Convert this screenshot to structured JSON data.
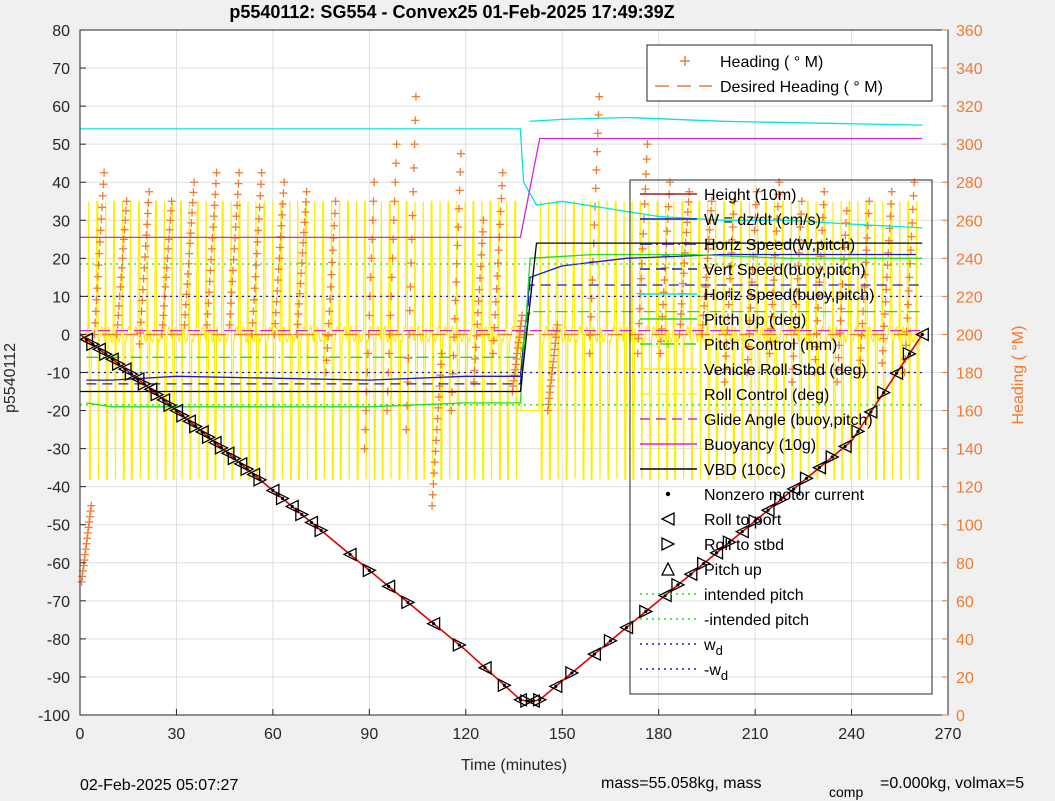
{
  "chart_data": {
    "type": "line",
    "title": "p5540112: SG554 - Convex25 01-Feb-2025 17:49:39Z",
    "xlabel": "Time (minutes)",
    "ylabel": "p5540112",
    "ylabel_right": "Heading ( °M)",
    "xlim": [
      0,
      270
    ],
    "ylim": [
      -100,
      80
    ],
    "ylim_right": [
      0,
      360
    ],
    "xticks": [
      "0",
      "30",
      "60",
      "90",
      "120",
      "150",
      "180",
      "210",
      "240",
      "270"
    ],
    "yticks": [
      "80",
      "70",
      "60",
      "50",
      "40",
      "30",
      "20",
      "10",
      "0",
      "-10",
      "-20",
      "-30",
      "-40",
      "-50",
      "-60",
      "-70",
      "-80",
      "-90",
      "-100"
    ],
    "yticks_right": [
      "360",
      "340",
      "320",
      "300",
      "280",
      "260",
      "240",
      "220",
      "200",
      "180",
      "160",
      "140",
      "120",
      "100",
      "80",
      "60",
      "40",
      "20",
      "0"
    ],
    "grid": true,
    "footer_left": "02-Feb-2025 05:07:27",
    "footer_right_a": "mass=55.058kg, mass",
    "footer_right_sub": "comp",
    "footer_right_b": "=0.000kg, volmax=5",
    "legend_top": [
      {
        "label": "Heading (  ° M)",
        "color": "#f47a30",
        "style": "plus"
      },
      {
        "label": "Desired Heading (   ° M)",
        "color": "#f47a30",
        "style": "dash"
      }
    ],
    "legend_main": [
      {
        "label": "Height (10m)",
        "color": "#a02020",
        "style": "line"
      },
      {
        "label": "W = dz/dt (cm/s)",
        "color": "#1a1acc",
        "style": "line"
      },
      {
        "label": "Horiz Speed(W,pitch)",
        "color": "#1a1acc",
        "style": "dashdot"
      },
      {
        "label": "Vert Speed(buoy,pitch)",
        "color": "#1a1acc",
        "style": "dash"
      },
      {
        "label": "Horiz Speed(buoy,pitch)",
        "color": "#00e5e5",
        "style": "line"
      },
      {
        "label": "Pitch Up (deg)",
        "color": "#22dd22",
        "style": "line"
      },
      {
        "label": "Pitch Control (mm)",
        "color": "#22dd22",
        "style": "dashdotplus"
      },
      {
        "label": "Vehicle Roll Stbd (deg)",
        "color": "#ffee00",
        "style": "line"
      },
      {
        "label": "Roll Control (deg)",
        "color": "#ffee00",
        "style": "dash"
      },
      {
        "label": "Glide Angle (buoy,pitch)",
        "color": "#e020e0",
        "style": "dash"
      },
      {
        "label": "Buoyancy (10g)",
        "color": "#e020e0",
        "style": "line"
      },
      {
        "label": "VBD (10cc)",
        "color": "#000000",
        "style": "line"
      },
      {
        "label": "Nonzero motor current",
        "color": "#000000",
        "style": "dot"
      },
      {
        "label": "Roll to port",
        "color": "#000000",
        "style": "tri-left"
      },
      {
        "label": "Roll to stbd",
        "color": "#000000",
        "style": "tri-right"
      },
      {
        "label": "Pitch up",
        "color": "#000000",
        "style": "tri-up"
      },
      {
        "label": "intended pitch",
        "color": "#22dd22",
        "style": "dot-line"
      },
      {
        "label": "-intended pitch",
        "color": "#22dd22",
        "style": "dot-line"
      },
      {
        "label": "w",
        "sub": "d",
        "color": "#1a1acc",
        "style": "dot-line"
      },
      {
        "label": "-w",
        "sub": "d",
        "color": "#1a1acc",
        "style": "dot-line"
      }
    ],
    "series": [
      {
        "name": "Height (10m)",
        "color": "#e00000",
        "x": [
          0,
          20,
          40,
          60,
          80,
          100,
          120,
          137,
          140,
          143,
          160,
          180,
          200,
          220,
          240,
          262
        ],
        "y": [
          0,
          -13,
          -27,
          -41,
          -55,
          -69,
          -83,
          -96,
          -96.5,
          -96,
          -84,
          -70,
          -56,
          -42,
          -28,
          0
        ]
      },
      {
        "name": "W = dz/dt (cm/s)",
        "color": "#1a1acc",
        "x": [
          2,
          10,
          30,
          60,
          90,
          120,
          137,
          140,
          150,
          170,
          200,
          230,
          260
        ],
        "y": [
          -12,
          -12,
          -11,
          -11.5,
          -12,
          -11,
          -11,
          15,
          18,
          20,
          21,
          21,
          21
        ]
      },
      {
        "name": "Vert Speed(buoy,pitch)",
        "color": "#1a1acc",
        "x": [
          2,
          137,
          140,
          262
        ],
        "y": [
          -13,
          -13,
          13,
          13
        ]
      },
      {
        "name": "Horiz Speed(buoy,pitch)",
        "color": "#00e5e5",
        "x": [
          0,
          137,
          138,
          142,
          150,
          165,
          180,
          200,
          220,
          240,
          262
        ],
        "y": [
          54,
          54,
          40,
          34,
          35,
          33,
          31,
          30,
          30,
          29,
          28
        ]
      },
      {
        "name": "Horiz Speed(W,pitch)",
        "color": "#00e5e5",
        "x": [
          140,
          150,
          170,
          200,
          230,
          262
        ],
        "y": [
          56,
          56.5,
          57,
          56,
          55.5,
          55
        ]
      },
      {
        "name": "Pitch Up (deg)",
        "color": "#22dd22",
        "x": [
          2,
          10,
          30,
          60,
          90,
          120,
          137,
          140,
          160,
          190,
          220,
          262
        ],
        "y": [
          -18,
          -19,
          -19,
          -19,
          -19,
          -18,
          -18,
          20,
          21,
          21,
          20,
          20
        ]
      },
      {
        "name": "Pitch Control (mm)",
        "color": "#22dd22",
        "x": [
          2,
          137,
          140,
          262
        ],
        "y": [
          -6,
          -6,
          6,
          6
        ]
      },
      {
        "name": "Buoyancy (10g)",
        "color": "#e020e0",
        "x": [
          0,
          137,
          143,
          262
        ],
        "y": [
          25.5,
          25.5,
          51.5,
          51.5
        ]
      },
      {
        "name": "Glide Angle (buoy,pitch)",
        "color": "#e020e0",
        "x": [
          0,
          262
        ],
        "y": [
          1,
          1
        ]
      },
      {
        "name": "VBD (10cc)",
        "color": "#000000",
        "x": [
          0,
          137,
          142,
          262
        ],
        "y": [
          -15,
          -15,
          24,
          24
        ]
      },
      {
        "name": "intended pitch",
        "color": "#22dd22",
        "x": [
          0,
          262
        ],
        "y": [
          18.5,
          18.5
        ]
      },
      {
        "name": "-intended pitch",
        "color": "#22dd22",
        "x": [
          0,
          262
        ],
        "y": [
          -18.5,
          -18.5
        ]
      },
      {
        "name": "w_d",
        "color": "#1a1acc",
        "x": [
          0,
          262
        ],
        "y": [
          10,
          10
        ]
      },
      {
        "name": "-w_d",
        "color": "#1a1acc",
        "x": [
          0,
          262
        ],
        "y": [
          -10,
          -10
        ]
      }
    ],
    "roll_events": {
      "x": [
        2,
        4,
        6,
        8,
        10,
        12,
        14,
        16,
        18,
        20,
        22,
        24,
        26,
        28,
        30,
        32,
        34,
        36,
        38,
        40,
        42,
        44,
        46,
        48,
        50,
        52,
        54,
        56,
        60,
        63,
        66,
        69,
        72,
        75,
        84,
        90,
        96,
        102,
        110,
        118,
        126,
        132,
        137,
        139,
        141,
        143,
        148,
        153,
        160,
        165,
        170,
        176,
        182,
        186,
        190,
        194,
        198,
        202,
        206,
        210,
        214,
        218,
        222,
        226,
        230,
        234,
        238,
        242,
        246,
        250,
        254,
        258,
        262
      ]
    },
    "heading_bursts": [
      {
        "x": 2,
        "ylo": 70,
        "yhi": 110
      },
      {
        "x": 6,
        "ylo": 200,
        "yhi": 285
      },
      {
        "x": 13,
        "ylo": 200,
        "yhi": 270
      },
      {
        "x": 20,
        "ylo": 195,
        "yhi": 275
      },
      {
        "x": 27,
        "ylo": 200,
        "yhi": 270
      },
      {
        "x": 34,
        "ylo": 205,
        "yhi": 280
      },
      {
        "x": 41,
        "ylo": 205,
        "yhi": 285
      },
      {
        "x": 48,
        "ylo": 205,
        "yhi": 285
      },
      {
        "x": 55,
        "ylo": 200,
        "yhi": 285
      },
      {
        "x": 62,
        "ylo": 200,
        "yhi": 280
      },
      {
        "x": 69,
        "ylo": 200,
        "yhi": 275
      },
      {
        "x": 78,
        "ylo": 180,
        "yhi": 270
      },
      {
        "x": 90,
        "ylo": 140,
        "yhi": 280
      },
      {
        "x": 97,
        "ylo": 160,
        "yhi": 300
      },
      {
        "x": 103,
        "ylo": 150,
        "yhi": 325
      },
      {
        "x": 111,
        "ylo": 110,
        "yhi": 190
      },
      {
        "x": 117,
        "ylo": 160,
        "yhi": 295
      },
      {
        "x": 124,
        "ylo": 175,
        "yhi": 260
      },
      {
        "x": 130,
        "ylo": 190,
        "yhi": 285
      },
      {
        "x": 136,
        "ylo": 170,
        "yhi": 210
      },
      {
        "x": 147,
        "ylo": 160,
        "yhi": 205
      },
      {
        "x": 160,
        "ylo": 190,
        "yhi": 325
      },
      {
        "x": 175,
        "ylo": 190,
        "yhi": 300
      },
      {
        "x": 182,
        "ylo": 190,
        "yhi": 280
      },
      {
        "x": 188,
        "ylo": 200,
        "yhi": 275
      },
      {
        "x": 195,
        "ylo": 200,
        "yhi": 270
      },
      {
        "x": 202,
        "ylo": 175,
        "yhi": 270
      },
      {
        "x": 209,
        "ylo": 180,
        "yhi": 275
      },
      {
        "x": 216,
        "ylo": 190,
        "yhi": 280
      },
      {
        "x": 223,
        "ylo": 175,
        "yhi": 270
      },
      {
        "x": 230,
        "ylo": 180,
        "yhi": 275
      },
      {
        "x": 237,
        "ylo": 175,
        "yhi": 265
      },
      {
        "x": 244,
        "ylo": 180,
        "yhi": 270
      },
      {
        "x": 251,
        "ylo": 185,
        "yhi": 275
      },
      {
        "x": 258,
        "ylo": 180,
        "yhi": 280
      }
    ],
    "desired_heading": 200
  }
}
